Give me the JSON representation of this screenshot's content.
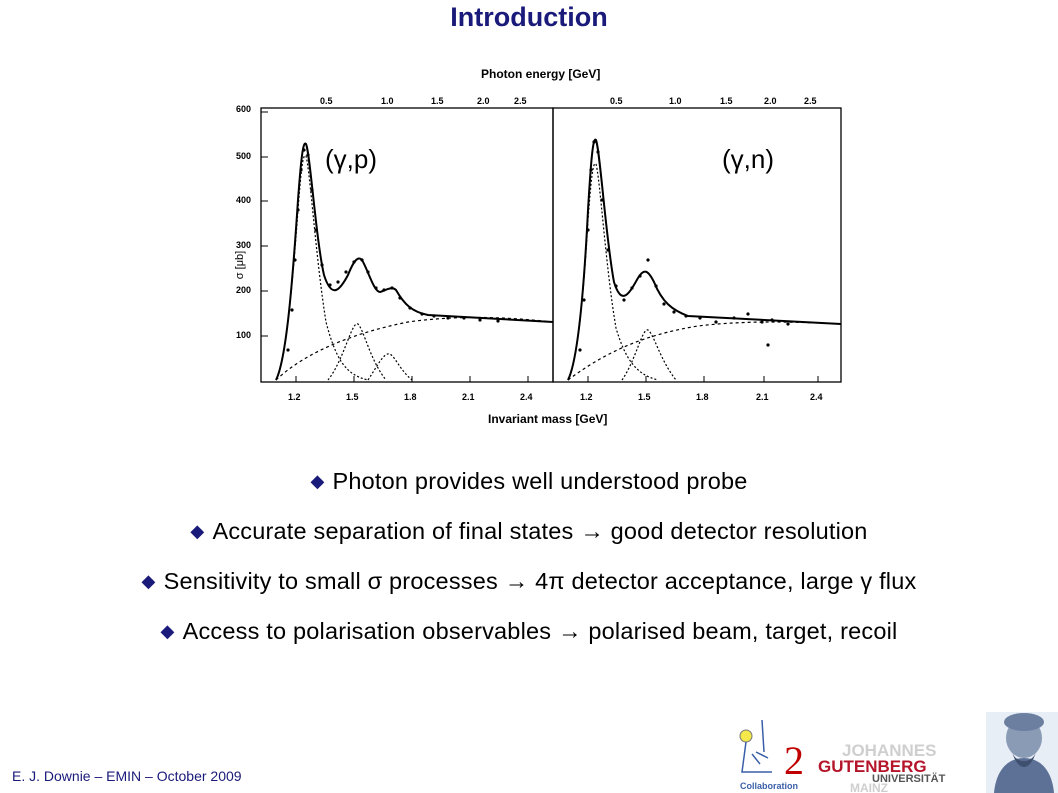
{
  "slide": {
    "title": "Introduction",
    "footer": "E. J. Downie – EMIN – October 2009"
  },
  "figure": {
    "top_axis_label": "Photon energy [GeV]",
    "bottom_axis_label": "Invariant mass [GeV]",
    "y_axis_label": "σ [μb]",
    "y_ticks": [
      "600",
      "500",
      "400",
      "300",
      "200",
      "100"
    ],
    "top_ticks": [
      "0.5",
      "1.0",
      "1.5",
      "2.0",
      "2.5"
    ],
    "bottom_ticks": [
      "1.2",
      "1.5",
      "1.8",
      "2.1",
      "2.4"
    ],
    "panels": [
      {
        "label": "(γ,p)"
      },
      {
        "label": "(γ,n)"
      }
    ]
  },
  "bullets": [
    "Photon provides well understood probe",
    "Accurate separation of final states → good detector resolution",
    "Sensitivity to small σ processes  → 4π detector acceptance, large γ flux",
    "Access to polarisation observables → polarised beam, target, recoil"
  ],
  "bullet_icon": "diamond-bullet-icon",
  "logos": {
    "a2_text": "2",
    "a2_caption": "Collaboration",
    "uni_line1": "JOHANNES",
    "uni_line2": "GUTENBERG",
    "uni_line3": "UNIVERSITÄT",
    "uni_line4": "MAINZ"
  },
  "colors": {
    "title": "#1a1a7a",
    "footer": "#1a1a7a",
    "gutenberg_red": "#b5152b",
    "a2_red": "#c00000"
  }
}
